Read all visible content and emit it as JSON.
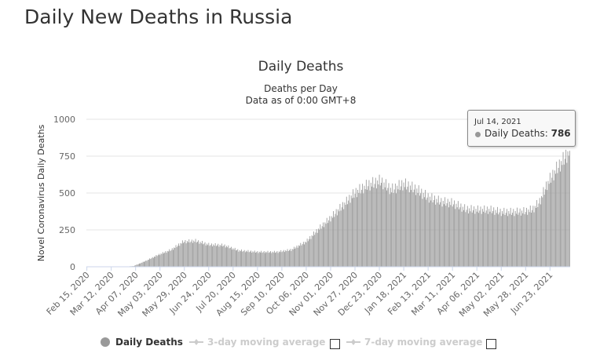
{
  "page": {
    "title": "Daily New Deaths in Russia"
  },
  "chart_data": {
    "type": "bar",
    "title": "Daily Deaths",
    "subtitle_line1": "Deaths per Day",
    "subtitle_line2": "Data as of 0:00 GMT+8",
    "ylabel": "Novel Coronavirus Daily Deaths",
    "xlabel": "",
    "ylim": [
      0,
      1000
    ],
    "yticks": [
      "0",
      "250",
      "500",
      "750",
      "1000"
    ],
    "x_start": "2020-02-15",
    "x_end": "2021-07-14",
    "xtick_labels": [
      "Feb 15, 2020",
      "Mar 12, 2020",
      "Apr 07, 2020",
      "May 03, 2020",
      "May 29, 2020",
      "Jun 24, 2020",
      "Jul 20, 2020",
      "Aug 15, 2020",
      "Sep 10, 2020",
      "Oct 06, 2020",
      "Nov 01, 2020",
      "Nov 27, 2020",
      "Dec 23, 2020",
      "Jan 18, 2021",
      "Feb 13, 2021",
      "Mar 11, 2021",
      "Apr 06, 2021",
      "May 02, 2021",
      "May 28, 2021",
      "Jun 23, 2021"
    ],
    "trend_points": [
      [
        "2020-02-15",
        0
      ],
      [
        "2020-03-25",
        0
      ],
      [
        "2020-04-05",
        5
      ],
      [
        "2020-04-18",
        40
      ],
      [
        "2020-05-01",
        80
      ],
      [
        "2020-05-15",
        115
      ],
      [
        "2020-05-28",
        170
      ],
      [
        "2020-06-10",
        175
      ],
      [
        "2020-06-24",
        150
      ],
      [
        "2020-07-10",
        145
      ],
      [
        "2020-07-26",
        110
      ],
      [
        "2020-08-15",
        100
      ],
      [
        "2020-09-05",
        100
      ],
      [
        "2020-09-20",
        115
      ],
      [
        "2020-10-06",
        170
      ],
      [
        "2020-10-20",
        260
      ],
      [
        "2020-11-01",
        330
      ],
      [
        "2020-11-15",
        420
      ],
      [
        "2020-11-27",
        500
      ],
      [
        "2020-12-10",
        550
      ],
      [
        "2020-12-24",
        580
      ],
      [
        "2021-01-05",
        520
      ],
      [
        "2021-01-18",
        560
      ],
      [
        "2021-02-01",
        520
      ],
      [
        "2021-02-13",
        470
      ],
      [
        "2021-02-27",
        440
      ],
      [
        "2021-03-11",
        430
      ],
      [
        "2021-03-25",
        390
      ],
      [
        "2021-04-06",
        385
      ],
      [
        "2021-04-20",
        385
      ],
      [
        "2021-05-02",
        370
      ],
      [
        "2021-05-16",
        370
      ],
      [
        "2021-05-28",
        375
      ],
      [
        "2021-06-05",
        390
      ],
      [
        "2021-06-12",
        440
      ],
      [
        "2021-06-20",
        560
      ],
      [
        "2021-06-30",
        660
      ],
      [
        "2021-07-07",
        720
      ],
      [
        "2021-07-14",
        786
      ]
    ],
    "series": [
      {
        "name": "Daily Deaths",
        "color": "#999999",
        "enabled": true
      },
      {
        "name": "3-day moving average",
        "color": "#cccccc",
        "enabled": false
      },
      {
        "name": "7-day moving average",
        "color": "#cccccc",
        "enabled": false
      }
    ],
    "tooltip": {
      "date": "Jul 14, 2021",
      "label": "Daily Deaths:",
      "value": "786"
    }
  }
}
